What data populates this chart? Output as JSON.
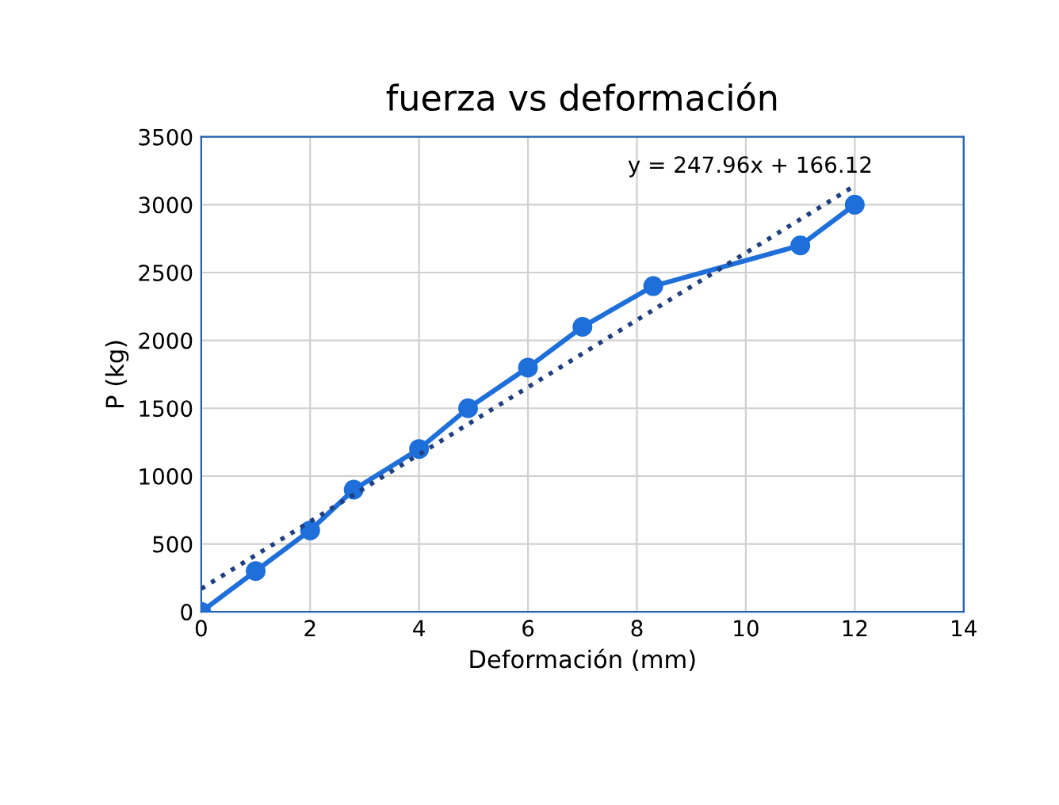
{
  "chart_data": {
    "type": "line",
    "title": "fuerza vs deformación",
    "xlabel": "Deformación (mm)",
    "ylabel": "P (kg)",
    "series": [
      {
        "color": "#1e6fd9",
        "marker": "circle",
        "line_style": "solid",
        "x": [
          0,
          1,
          2,
          2.8,
          4,
          4.9,
          6,
          7,
          8.3,
          11,
          12
        ],
        "values": [
          0,
          300,
          600,
          900,
          1200,
          1500,
          1800,
          2100,
          2400,
          2700,
          3000
        ]
      },
      {
        "color": "#1f3f7f",
        "marker": "none",
        "line_style": "dotted",
        "x": [
          0,
          12
        ],
        "values": [
          170,
          3140
        ]
      }
    ],
    "annotations": [
      "y = 247.96x + 166.12"
    ],
    "xlim": [
      0,
      14
    ],
    "xticks": [
      0,
      2,
      4,
      6,
      8,
      10,
      12,
      14
    ],
    "ylim": [
      0,
      3500
    ],
    "yticks": [
      0,
      500,
      1000,
      1500,
      2000,
      2500,
      3000,
      3500
    ],
    "grid": true,
    "legend": false
  }
}
